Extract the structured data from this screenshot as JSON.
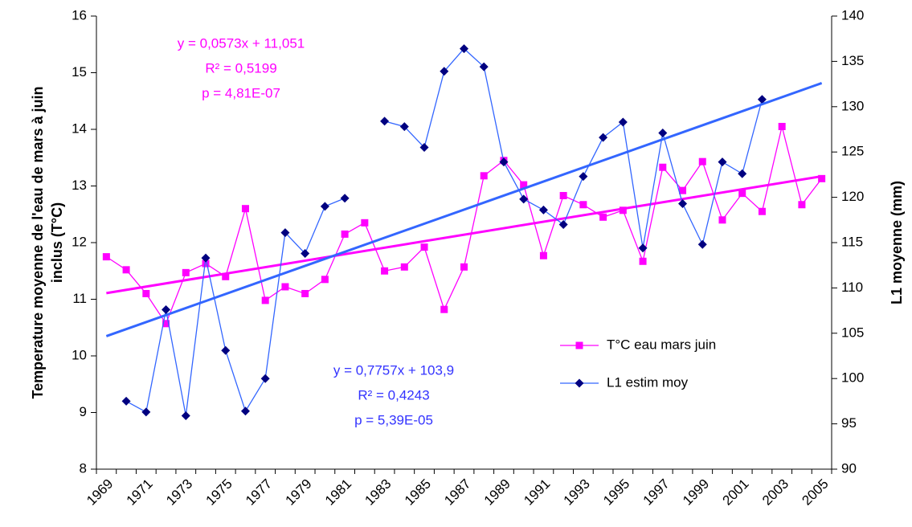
{
  "chart_data": {
    "type": "line",
    "categories": [
      1969,
      null,
      1971,
      null,
      1973,
      null,
      1975,
      null,
      1977,
      null,
      1979,
      null,
      1981,
      null,
      1983,
      null,
      1985,
      null,
      1987,
      null,
      1989,
      null,
      1991,
      null,
      1993,
      null,
      1995,
      null,
      1997,
      null,
      1999,
      null,
      2001,
      null,
      2003,
      null,
      2005
    ],
    "ylabel": [
      "Temperature moyenne de l'eau de mars à juin",
      "inclus (T°C)"
    ],
    "y2label": "L1 moyenne (mm)",
    "ylim": [
      8,
      16
    ],
    "yticks": [
      8,
      9,
      10,
      11,
      12,
      13,
      14,
      15,
      16
    ],
    "y2lim": [
      90,
      140
    ],
    "y2ticks": [
      90,
      95,
      100,
      105,
      110,
      115,
      120,
      125,
      130,
      135,
      140
    ],
    "legend": "right",
    "series": [
      {
        "name": "T°C eau mars juin",
        "color": "#ff00ff",
        "marker": "square",
        "values": [
          11.75,
          11.52,
          11.1,
          10.57,
          11.47,
          11.63,
          11.4,
          12.6,
          10.98,
          11.22,
          11.1,
          11.35,
          12.15,
          12.35,
          11.5,
          11.57,
          11.92,
          10.82,
          11.57,
          13.18,
          13.45,
          13.02,
          11.77,
          12.83,
          12.67,
          12.45,
          12.57,
          11.67,
          13.33,
          12.92,
          13.43,
          12.4,
          12.87,
          12.55,
          14.05,
          12.67,
          13.13
        ],
        "trendline": {
          "slope": 0.0573,
          "intercept": 11.051
        }
      },
      {
        "name": "L1 estim moy",
        "color": "#3366ff",
        "marker_color": "#000080",
        "marker": "diamond",
        "axis": "y2",
        "values": [
          null,
          97.5,
          96.3,
          107.6,
          95.9,
          113.3,
          103.1,
          96.4,
          100,
          116.1,
          113.8,
          119,
          119.9,
          null,
          128.4,
          127.8,
          125.5,
          133.9,
          136.4,
          134.4,
          123.9,
          119.8,
          118.6,
          117,
          122.3,
          126.6,
          128.3,
          114.4,
          127.1,
          119.3,
          114.8,
          123.9,
          122.6,
          130.8,
          null,
          null,
          null
        ],
        "trendline": {
          "slope": 0.7757,
          "intercept": 103.9
        }
      }
    ],
    "annotations": [
      {
        "color": "#ff00ff",
        "lines": [
          "y = 0,0573x + 11,051",
          "R² = 0,5199",
          "p = 4,81E-07"
        ]
      },
      {
        "color": "#3333ff",
        "lines": [
          "y = 0,7757x + 103,9",
          "R² = 0,4243",
          "p = 5,39E-05"
        ]
      }
    ]
  }
}
